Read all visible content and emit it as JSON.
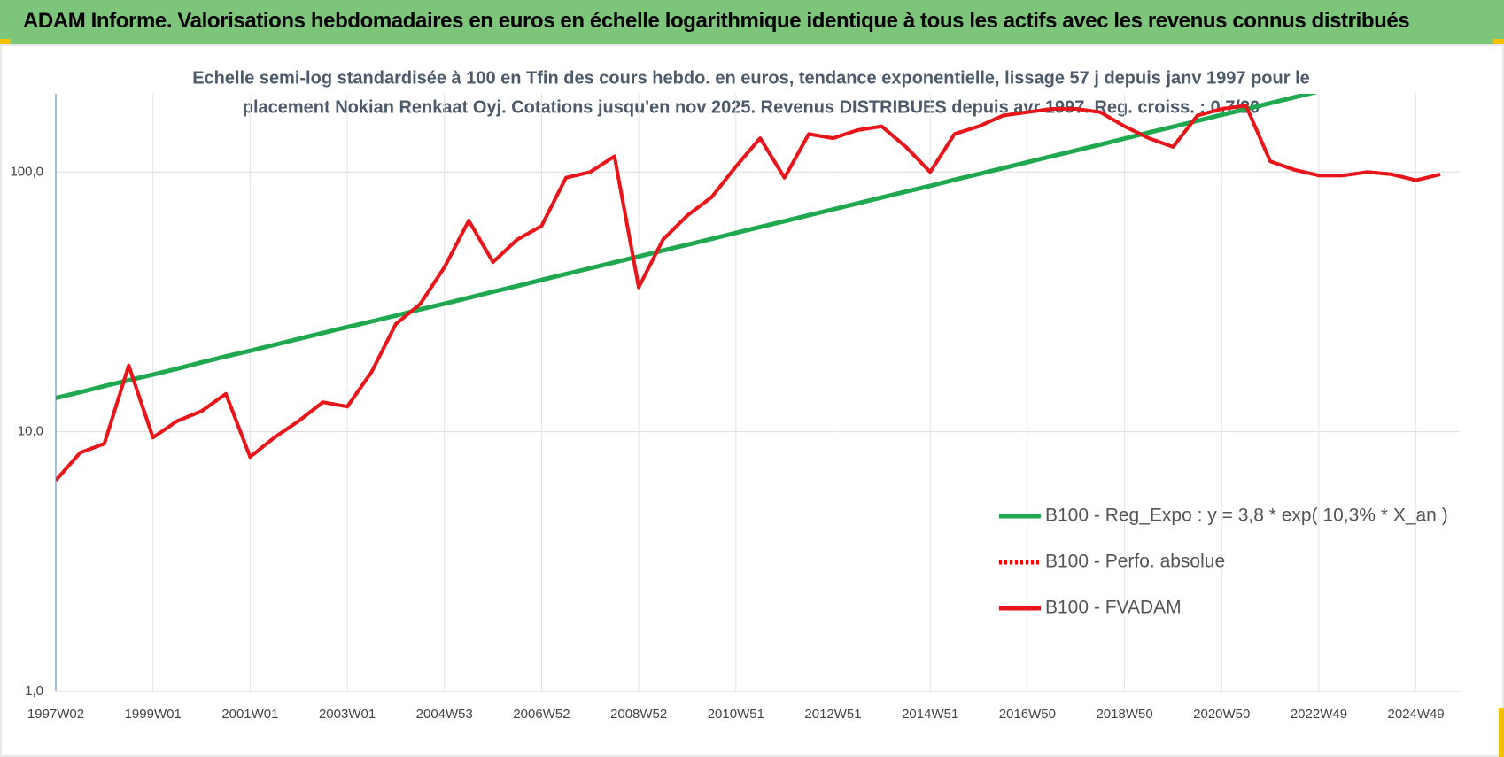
{
  "header": {
    "title": "ADAM Informe. Valorisations hebdomadaires en euros en échelle logarithmique identique à tous les actifs avec les revenus connus distribués"
  },
  "chart_data": {
    "type": "line",
    "subtitle": [
      "Echelle semi-log standardisée à 100 en Tfin des cours hebdo. en euros, tendance exponentielle, lissage 57 j depuis janv 1997 pour le",
      "placement Nokian Renkaat Oyj. Cotations jusqu'en nov 2025. Revenus DISTRIBUES depuis avr 1997. Reg. croiss. : 0,7/20"
    ],
    "categories": [
      "1997W02",
      null,
      null,
      null,
      "1999W01",
      null,
      null,
      null,
      "2001W01",
      null,
      null,
      null,
      "2003W01",
      null,
      null,
      null,
      "2004W53",
      null,
      null,
      null,
      "2006W52",
      null,
      null,
      null,
      "2008W52",
      null,
      null,
      null,
      "2010W51",
      null,
      null,
      null,
      "2012W51",
      null,
      null,
      null,
      "2014W51",
      null,
      null,
      null,
      "2016W50",
      null,
      null,
      null,
      "2018W50",
      null,
      null,
      null,
      "2020W50",
      null,
      null,
      null,
      "2022W49",
      null,
      null,
      null,
      "2024W49",
      null
    ],
    "series": [
      {
        "name": "B100 - Reg_Expo : y = 3,8 * exp( 10,3% *  X_an )",
        "color": "#1fa84f",
        "style": "solid",
        "values": [
          13.5,
          14.2,
          15.0,
          15.8,
          16.6,
          17.5,
          18.5,
          19.5,
          20.5,
          21.6,
          22.8,
          24.0,
          25.3,
          26.6,
          28.0,
          29.6,
          31.1,
          32.8,
          34.6,
          36.4,
          38.4,
          40.5,
          42.6,
          44.9,
          47.3,
          49.9,
          52.5,
          55.3,
          58.3,
          61.4,
          64.7,
          68.2,
          71.8,
          75.7,
          79.8,
          84.1,
          88.5,
          93.3,
          98.3,
          103.5,
          109.1,
          115.0,
          121.1,
          127.6,
          134.6,
          141.9,
          149.3,
          157.4,
          166.0,
          174.6,
          184.1,
          194.1,
          204.6,
          null,
          null,
          null,
          null,
          null
        ]
      },
      {
        "name": "B100 - Perfo. absolue",
        "color": "#ff0000",
        "style": "dotted",
        "values": [
          6.5,
          8.3,
          9.0,
          18,
          9.5,
          11,
          12,
          14,
          8,
          9.5,
          11,
          13,
          12.5,
          17,
          26,
          31,
          43,
          65,
          45,
          55,
          62,
          95,
          100,
          115,
          36,
          55,
          68,
          80,
          105,
          135,
          95,
          140,
          135,
          145,
          150,
          125,
          100,
          140,
          150,
          165,
          170,
          175,
          175,
          170,
          150,
          135,
          125,
          165,
          175,
          180,
          110,
          102,
          97,
          97,
          100,
          98,
          93,
          98
        ]
      },
      {
        "name": "B100 - FVADAM",
        "color": "#e8161b",
        "style": "solid",
        "values": [
          6.5,
          8.3,
          9.0,
          18,
          9.5,
          11,
          12,
          14,
          8,
          9.5,
          11,
          13,
          12.5,
          17,
          26,
          31,
          43,
          65,
          45,
          55,
          62,
          95,
          100,
          115,
          36,
          55,
          68,
          80,
          105,
          135,
          95,
          140,
          135,
          145,
          150,
          125,
          100,
          140,
          150,
          165,
          170,
          175,
          175,
          170,
          150,
          135,
          125,
          165,
          175,
          180,
          110,
          102,
          97,
          97,
          100,
          98,
          93,
          98
        ]
      }
    ],
    "log_scale": true,
    "ylim": [
      1,
      200
    ],
    "yticks": [
      {
        "value": 1,
        "label": "1,0"
      },
      {
        "value": 10,
        "label": "10,0"
      },
      {
        "value": 100,
        "label": "100,0"
      }
    ],
    "grid": true,
    "legend": "lower-right"
  }
}
